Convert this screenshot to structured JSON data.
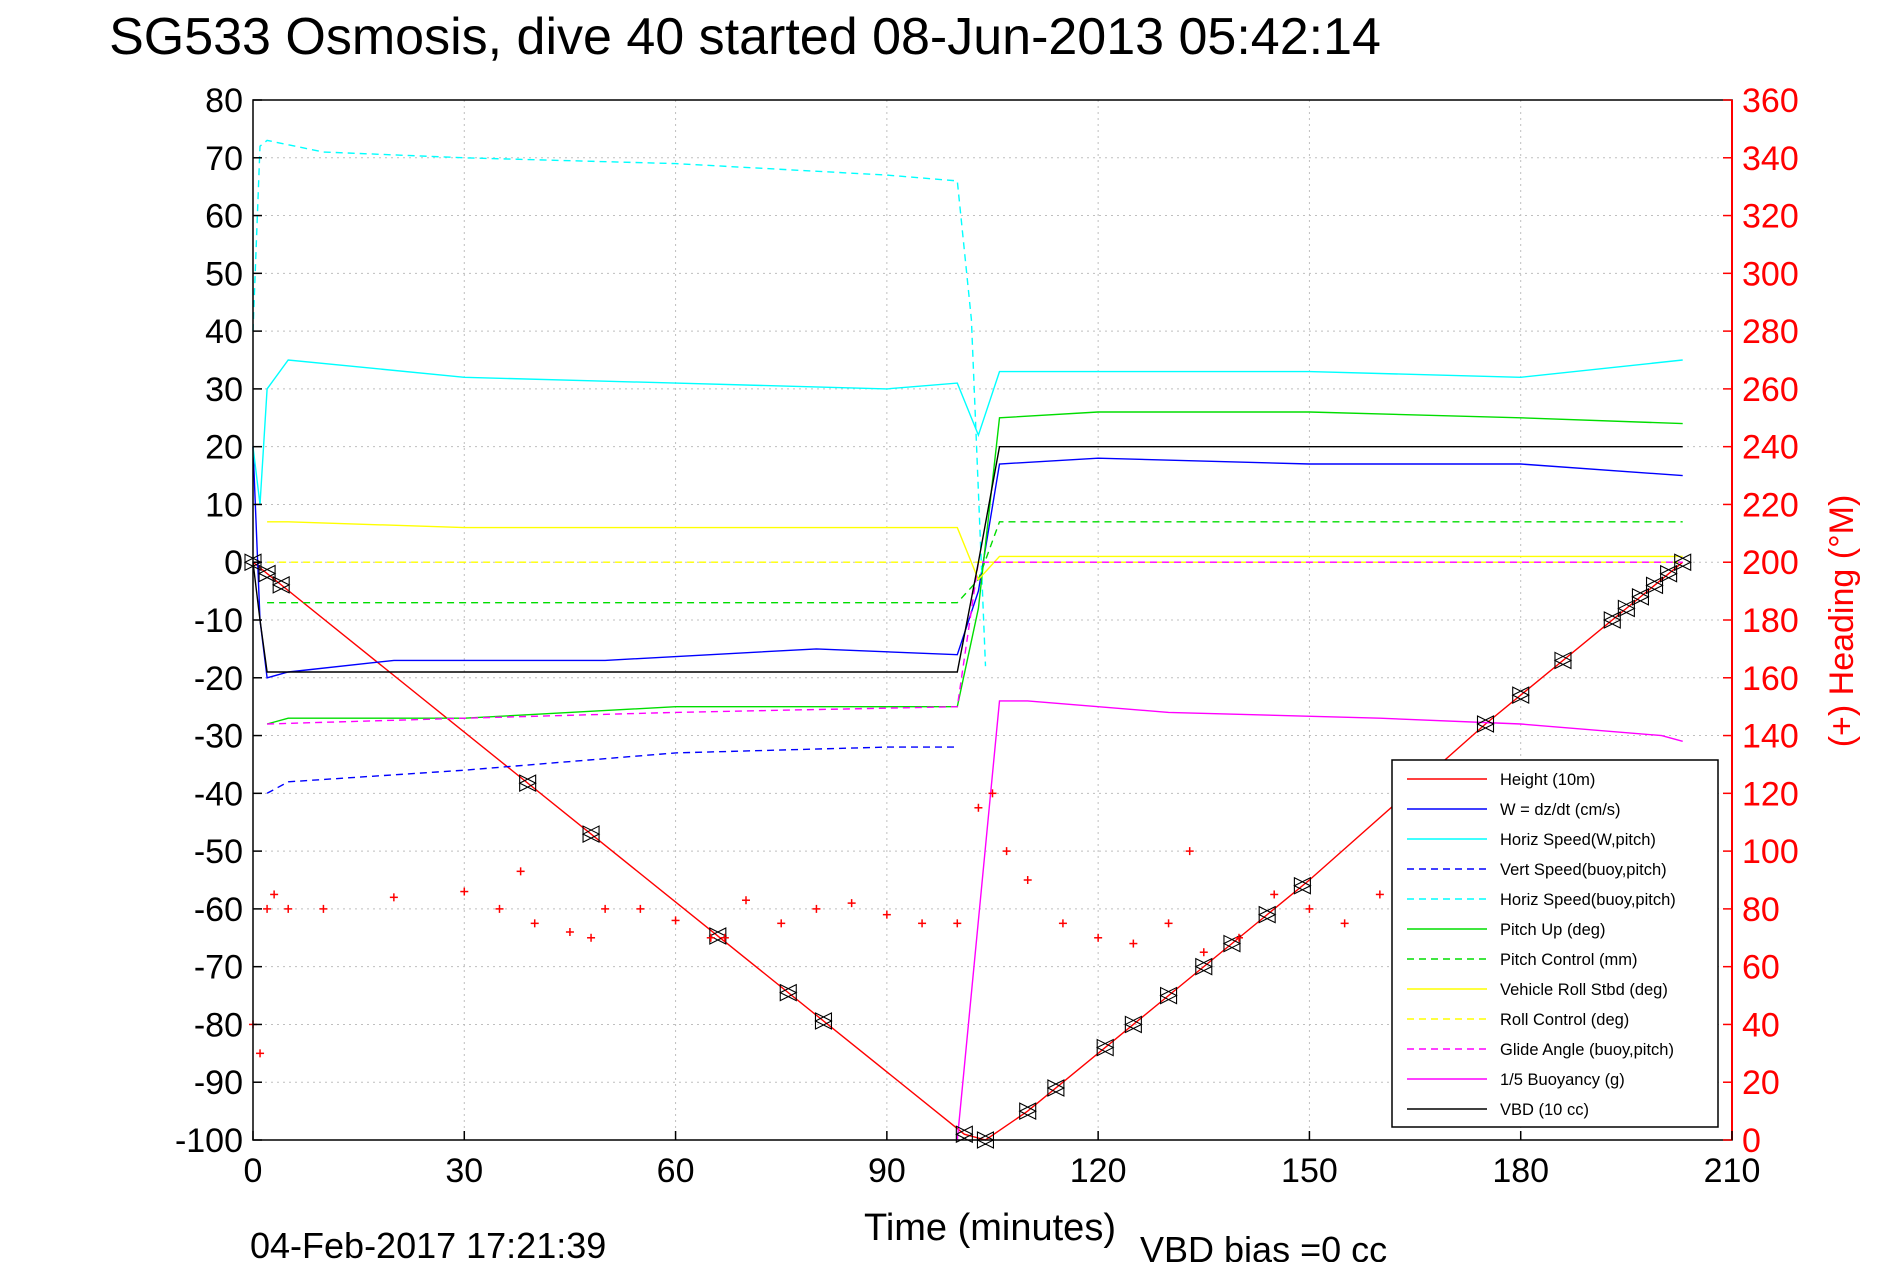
{
  "chart_data": {
    "type": "line",
    "title": "SG533 Osmosis, dive 40 started 08-Jun-2013 05:42:14",
    "xlabel": "Time (minutes)",
    "y2label": "(+) Heading (°M)",
    "footer_left": "04-Feb-2017 17:21:39",
    "footer_right": "VBD bias =0 cc",
    "xlim": [
      0,
      210
    ],
    "ylim": [
      -100,
      80
    ],
    "y2lim": [
      0,
      360
    ],
    "xticks": [
      "0",
      "30",
      "60",
      "90",
      "120",
      "150",
      "180",
      "210"
    ],
    "yticks": [
      "80",
      "70",
      "60",
      "50",
      "40",
      "30",
      "20",
      "10",
      "0",
      "-10",
      "-20",
      "-30",
      "-40",
      "-50",
      "-60",
      "-70",
      "-80",
      "-90",
      "-100"
    ],
    "y2ticks": [
      "360",
      "340",
      "320",
      "300",
      "280",
      "260",
      "240",
      "220",
      "200",
      "180",
      "160",
      "140",
      "120",
      "100",
      "80",
      "60",
      "40",
      "20",
      "0"
    ],
    "grid": true,
    "legend_position": "bottom-right",
    "series": [
      {
        "name": "Height (10m)",
        "color": "#ff0000",
        "style": "solid",
        "x": [
          0,
          101,
          104,
          110,
          150,
          175,
          203
        ],
        "y": [
          0,
          -99,
          -100,
          -95,
          -55,
          -28,
          0
        ]
      },
      {
        "name": "W = dz/dt (cm/s)",
        "color": "#0000ff",
        "style": "solid",
        "x": [
          0,
          1,
          2,
          5,
          20,
          50,
          80,
          100,
          103,
          106,
          120,
          150,
          180,
          203
        ],
        "y": [
          20,
          -10,
          -20,
          -19,
          -17,
          -17,
          -15,
          -16,
          -5,
          17,
          18,
          17,
          17,
          15
        ]
      },
      {
        "name": "Horiz Speed(W,pitch)",
        "color": "#00ffff",
        "style": "solid",
        "x": [
          0,
          1,
          2,
          5,
          30,
          60,
          90,
          100,
          103,
          106,
          120,
          150,
          180,
          203
        ],
        "y": [
          20,
          10,
          30,
          35,
          32,
          31,
          30,
          31,
          22,
          33,
          33,
          33,
          32,
          35
        ]
      },
      {
        "name": "Vert Speed(buoy,pitch)",
        "color": "#0000ff",
        "style": "dashed",
        "x": [
          2,
          5,
          30,
          60,
          90,
          100
        ],
        "y": [
          -40,
          -38,
          -36,
          -33,
          -32,
          -32
        ]
      },
      {
        "name": "Horiz Speed(buoy,pitch)",
        "color": "#00ffff",
        "style": "dashed",
        "x": [
          0,
          1,
          2,
          10,
          30,
          60,
          90,
          100,
          102,
          104
        ],
        "y": [
          40,
          72,
          73,
          71,
          70,
          69,
          67,
          66,
          42,
          -18
        ]
      },
      {
        "name": "Pitch Up (deg)",
        "color": "#00dd00",
        "style": "solid",
        "x": [
          2,
          5,
          30,
          60,
          100,
          103,
          106,
          120,
          150,
          180,
          203
        ],
        "y": [
          -28,
          -27,
          -27,
          -25,
          -25,
          -8,
          25,
          26,
          26,
          25,
          24
        ]
      },
      {
        "name": "Pitch Control (mm)",
        "color": "#00dd00",
        "style": "dashed",
        "x": [
          2,
          100,
          103,
          106,
          203
        ],
        "y": [
          -7,
          -7,
          -3,
          7,
          7
        ]
      },
      {
        "name": "Vehicle Roll Stbd (deg)",
        "color": "#ffff00",
        "style": "solid",
        "x": [
          2,
          5,
          30,
          60,
          100,
          103,
          106,
          203
        ],
        "y": [
          7,
          7,
          6,
          6,
          6,
          -3,
          1,
          1
        ]
      },
      {
        "name": "Roll Control (deg)",
        "color": "#ffff00",
        "style": "dashed",
        "x": [
          2,
          100,
          103,
          203
        ],
        "y": [
          0,
          0,
          0,
          0
        ]
      },
      {
        "name": "Glide Angle (buoy,pitch)",
        "color": "#ff00ff",
        "style": "dashed",
        "x": [
          2,
          30,
          60,
          100,
          103,
          203
        ],
        "y": [
          -28,
          -27,
          -26,
          -25,
          0,
          0
        ]
      },
      {
        "name": "1/5 Buoyancy (g)",
        "color": "#ff00ff",
        "style": "solid",
        "x": [
          100,
          106,
          110,
          130,
          160,
          180,
          200,
          203
        ],
        "y": [
          -100,
          -24,
          -24,
          -26,
          -27,
          -28,
          -30,
          -31
        ]
      },
      {
        "name": "VBD (10 cc)",
        "color": "#000000",
        "style": "solid",
        "x": [
          0,
          1,
          2,
          100,
          103,
          106,
          203
        ],
        "y": [
          0,
          -10,
          -19,
          -19,
          0,
          20,
          20
        ]
      },
      {
        "name": "Heading",
        "color": "#ff0000",
        "style": "markers",
        "x": [
          0,
          1,
          2,
          3,
          5,
          10,
          20,
          30,
          35,
          38,
          40,
          45,
          48,
          50,
          55,
          60,
          65,
          67,
          70,
          75,
          80,
          85,
          90,
          95,
          100,
          103,
          105,
          107,
          110,
          115,
          120,
          125,
          130,
          133,
          135,
          140,
          145,
          150,
          155,
          160
        ],
        "y2": [
          40,
          30,
          80,
          85,
          80,
          80,
          84,
          86,
          80,
          93,
          75,
          72,
          70,
          80,
          80,
          76,
          70,
          70,
          83,
          75,
          80,
          82,
          78,
          75,
          75,
          115,
          120,
          100,
          90,
          75,
          70,
          68,
          75,
          100,
          65,
          70,
          85,
          80,
          75,
          85
        ]
      }
    ]
  }
}
